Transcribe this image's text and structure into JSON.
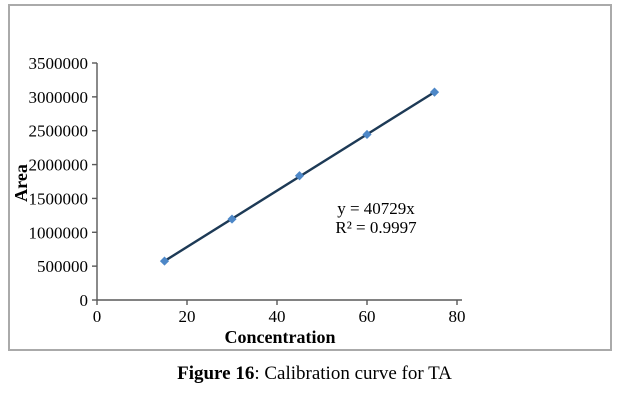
{
  "chart_data": {
    "type": "scatter",
    "title": "",
    "xlabel": "Concentration",
    "ylabel": "Area",
    "x": [
      15,
      30,
      45,
      60,
      75
    ],
    "y": [
      575000,
      1195000,
      1835000,
      2445000,
      3070000
    ],
    "trendline": {
      "slope": 40729,
      "intercept": 0
    },
    "annotation": {
      "equation": "y = 40729x",
      "r_squared": "R² = 0.9997"
    },
    "x_ticks": [
      0,
      20,
      40,
      60,
      80
    ],
    "y_ticks": [
      0,
      500000,
      1000000,
      1500000,
      2000000,
      2500000,
      3000000,
      3500000
    ],
    "xlim": [
      0,
      80
    ],
    "ylim": [
      0,
      3500000
    ],
    "grid": false,
    "legend": "none",
    "marker": "diamond",
    "marker_color": "#4d87c7",
    "line_color": "#1d3a56",
    "axis_color": "#595959",
    "frame_color": "#aaaaaa"
  },
  "caption": {
    "label": "Figure 16",
    "text": ": Calibration curve for TA"
  }
}
